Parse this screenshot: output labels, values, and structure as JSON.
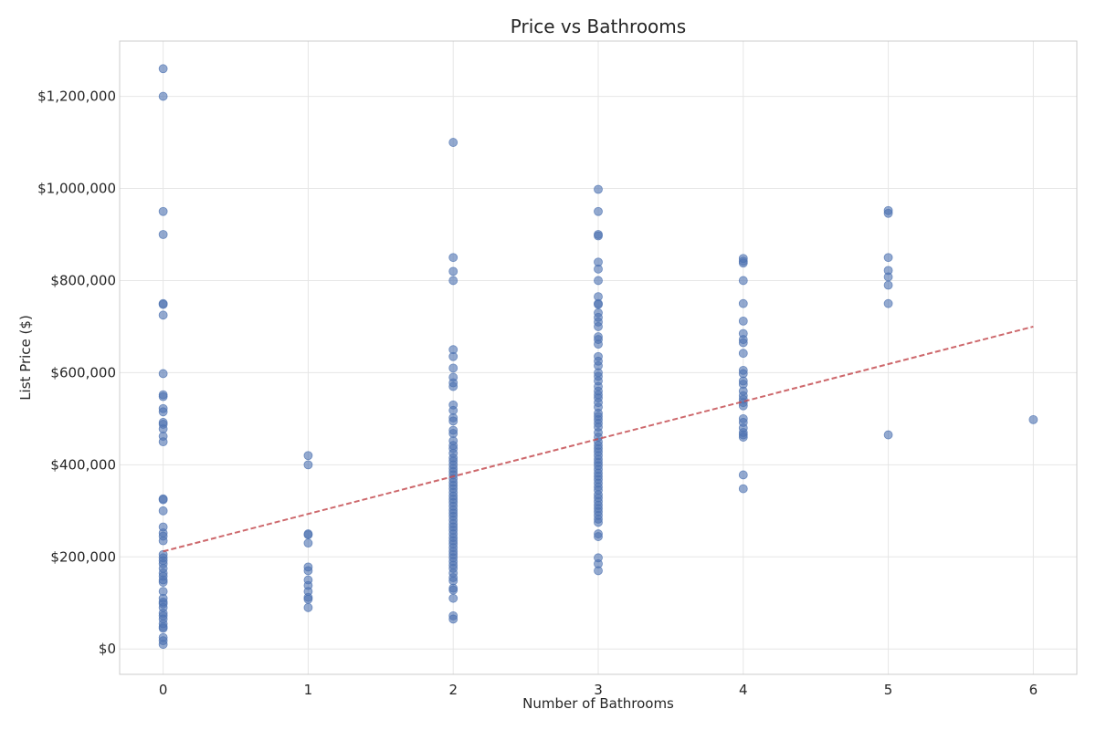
{
  "chart_data": {
    "type": "scatter",
    "title": "Price vs Bathrooms",
    "xlabel": "Number of Bathrooms",
    "ylabel": "List Price ($)",
    "xlim": [
      -0.3,
      6.3
    ],
    "ylim": [
      -55000,
      1320000
    ],
    "grid": true,
    "x_ticks": [
      0,
      1,
      2,
      3,
      4,
      5,
      6
    ],
    "x_tick_labels": [
      "0",
      "1",
      "2",
      "3",
      "4",
      "5",
      "6"
    ],
    "y_ticks": [
      0,
      200000,
      400000,
      600000,
      800000,
      1000000,
      1200000
    ],
    "y_tick_labels": [
      "$0",
      "$200,000",
      "$400,000",
      "$600,000",
      "$800,000",
      "$1,000,000",
      "$1,200,000"
    ],
    "colors": {
      "points": "#4c72b0",
      "trend": "#c44e52"
    },
    "series": [
      {
        "kind": "scatter",
        "points": [
          [
            0,
            1260000
          ],
          [
            0,
            1200000
          ],
          [
            0,
            950000
          ],
          [
            0,
            900000
          ],
          [
            0,
            750000
          ],
          [
            0,
            748000
          ],
          [
            0,
            725000
          ],
          [
            0,
            598000
          ],
          [
            0,
            552000
          ],
          [
            0,
            548000
          ],
          [
            0,
            522000
          ],
          [
            0,
            515000
          ],
          [
            0,
            492000
          ],
          [
            0,
            488000
          ],
          [
            0,
            478000
          ],
          [
            0,
            462000
          ],
          [
            0,
            450000
          ],
          [
            0,
            326000
          ],
          [
            0,
            324000
          ],
          [
            0,
            300000
          ],
          [
            0,
            265000
          ],
          [
            0,
            252000
          ],
          [
            0,
            245000
          ],
          [
            0,
            235000
          ],
          [
            0,
            205000
          ],
          [
            0,
            198000
          ],
          [
            0,
            192000
          ],
          [
            0,
            185000
          ],
          [
            0,
            175000
          ],
          [
            0,
            165000
          ],
          [
            0,
            158000
          ],
          [
            0,
            150000
          ],
          [
            0,
            145000
          ],
          [
            0,
            125000
          ],
          [
            0,
            110000
          ],
          [
            0,
            102000
          ],
          [
            0,
            98000
          ],
          [
            0,
            90000
          ],
          [
            0,
            78000
          ],
          [
            0,
            72000
          ],
          [
            0,
            65000
          ],
          [
            0,
            55000
          ],
          [
            0,
            48000
          ],
          [
            0,
            45000
          ],
          [
            0,
            25000
          ],
          [
            0,
            18000
          ],
          [
            0,
            10000
          ],
          [
            1,
            420000
          ],
          [
            1,
            400000
          ],
          [
            1,
            250000
          ],
          [
            1,
            248000
          ],
          [
            1,
            230000
          ],
          [
            1,
            178000
          ],
          [
            1,
            170000
          ],
          [
            1,
            150000
          ],
          [
            1,
            138000
          ],
          [
            1,
            125000
          ],
          [
            1,
            112000
          ],
          [
            1,
            108000
          ],
          [
            1,
            90000
          ],
          [
            2,
            1100000
          ],
          [
            2,
            850000
          ],
          [
            2,
            820000
          ],
          [
            2,
            800000
          ],
          [
            2,
            650000
          ],
          [
            2,
            635000
          ],
          [
            2,
            610000
          ],
          [
            2,
            590000
          ],
          [
            2,
            578000
          ],
          [
            2,
            570000
          ],
          [
            2,
            530000
          ],
          [
            2,
            518000
          ],
          [
            2,
            502000
          ],
          [
            2,
            495000
          ],
          [
            2,
            475000
          ],
          [
            2,
            468000
          ],
          [
            2,
            452000
          ],
          [
            2,
            442000
          ],
          [
            2,
            435000
          ],
          [
            2,
            425000
          ],
          [
            2,
            415000
          ],
          [
            2,
            408000
          ],
          [
            2,
            400000
          ],
          [
            2,
            392000
          ],
          [
            2,
            385000
          ],
          [
            2,
            378000
          ],
          [
            2,
            370000
          ],
          [
            2,
            362000
          ],
          [
            2,
            355000
          ],
          [
            2,
            348000
          ],
          [
            2,
            340000
          ],
          [
            2,
            332000
          ],
          [
            2,
            325000
          ],
          [
            2,
            318000
          ],
          [
            2,
            310000
          ],
          [
            2,
            302000
          ],
          [
            2,
            295000
          ],
          [
            2,
            288000
          ],
          [
            2,
            280000
          ],
          [
            2,
            272000
          ],
          [
            2,
            265000
          ],
          [
            2,
            258000
          ],
          [
            2,
            250000
          ],
          [
            2,
            242000
          ],
          [
            2,
            235000
          ],
          [
            2,
            228000
          ],
          [
            2,
            220000
          ],
          [
            2,
            212000
          ],
          [
            2,
            205000
          ],
          [
            2,
            198000
          ],
          [
            2,
            190000
          ],
          [
            2,
            182000
          ],
          [
            2,
            175000
          ],
          [
            2,
            165000
          ],
          [
            2,
            155000
          ],
          [
            2,
            148000
          ],
          [
            2,
            132000
          ],
          [
            2,
            128000
          ],
          [
            2,
            110000
          ],
          [
            2,
            72000
          ],
          [
            2,
            65000
          ],
          [
            3,
            998000
          ],
          [
            3,
            950000
          ],
          [
            3,
            900000
          ],
          [
            3,
            897000
          ],
          [
            3,
            840000
          ],
          [
            3,
            825000
          ],
          [
            3,
            800000
          ],
          [
            3,
            765000
          ],
          [
            3,
            750000
          ],
          [
            3,
            748000
          ],
          [
            3,
            730000
          ],
          [
            3,
            720000
          ],
          [
            3,
            710000
          ],
          [
            3,
            700000
          ],
          [
            3,
            678000
          ],
          [
            3,
            672000
          ],
          [
            3,
            662000
          ],
          [
            3,
            635000
          ],
          [
            3,
            625000
          ],
          [
            3,
            615000
          ],
          [
            3,
            600000
          ],
          [
            3,
            592000
          ],
          [
            3,
            582000
          ],
          [
            3,
            570000
          ],
          [
            3,
            560000
          ],
          [
            3,
            552000
          ],
          [
            3,
            545000
          ],
          [
            3,
            535000
          ],
          [
            3,
            525000
          ],
          [
            3,
            512000
          ],
          [
            3,
            505000
          ],
          [
            3,
            498000
          ],
          [
            3,
            490000
          ],
          [
            3,
            482000
          ],
          [
            3,
            470000
          ],
          [
            3,
            460000
          ],
          [
            3,
            450000
          ],
          [
            3,
            442000
          ],
          [
            3,
            435000
          ],
          [
            3,
            428000
          ],
          [
            3,
            420000
          ],
          [
            3,
            412000
          ],
          [
            3,
            405000
          ],
          [
            3,
            398000
          ],
          [
            3,
            390000
          ],
          [
            3,
            382000
          ],
          [
            3,
            375000
          ],
          [
            3,
            368000
          ],
          [
            3,
            360000
          ],
          [
            3,
            352000
          ],
          [
            3,
            345000
          ],
          [
            3,
            335000
          ],
          [
            3,
            328000
          ],
          [
            3,
            320000
          ],
          [
            3,
            312000
          ],
          [
            3,
            305000
          ],
          [
            3,
            298000
          ],
          [
            3,
            290000
          ],
          [
            3,
            282000
          ],
          [
            3,
            275000
          ],
          [
            3,
            250000
          ],
          [
            3,
            244000
          ],
          [
            3,
            198000
          ],
          [
            3,
            185000
          ],
          [
            3,
            170000
          ],
          [
            4,
            848000
          ],
          [
            4,
            842000
          ],
          [
            4,
            838000
          ],
          [
            4,
            800000
          ],
          [
            4,
            750000
          ],
          [
            4,
            712000
          ],
          [
            4,
            685000
          ],
          [
            4,
            672000
          ],
          [
            4,
            665000
          ],
          [
            4,
            642000
          ],
          [
            4,
            605000
          ],
          [
            4,
            598000
          ],
          [
            4,
            582000
          ],
          [
            4,
            575000
          ],
          [
            4,
            560000
          ],
          [
            4,
            550000
          ],
          [
            4,
            542000
          ],
          [
            4,
            535000
          ],
          [
            4,
            528000
          ],
          [
            4,
            500000
          ],
          [
            4,
            492000
          ],
          [
            4,
            480000
          ],
          [
            4,
            470000
          ],
          [
            4,
            465000
          ],
          [
            4,
            460000
          ],
          [
            4,
            378000
          ],
          [
            4,
            348000
          ],
          [
            5,
            952000
          ],
          [
            5,
            946000
          ],
          [
            5,
            850000
          ],
          [
            5,
            822000
          ],
          [
            5,
            808000
          ],
          [
            5,
            790000
          ],
          [
            5,
            750000
          ],
          [
            5,
            465000
          ],
          [
            6,
            498000
          ]
        ]
      },
      {
        "kind": "line",
        "style": "dashed",
        "points": [
          [
            0,
            212000
          ],
          [
            6,
            700000
          ]
        ]
      }
    ]
  }
}
